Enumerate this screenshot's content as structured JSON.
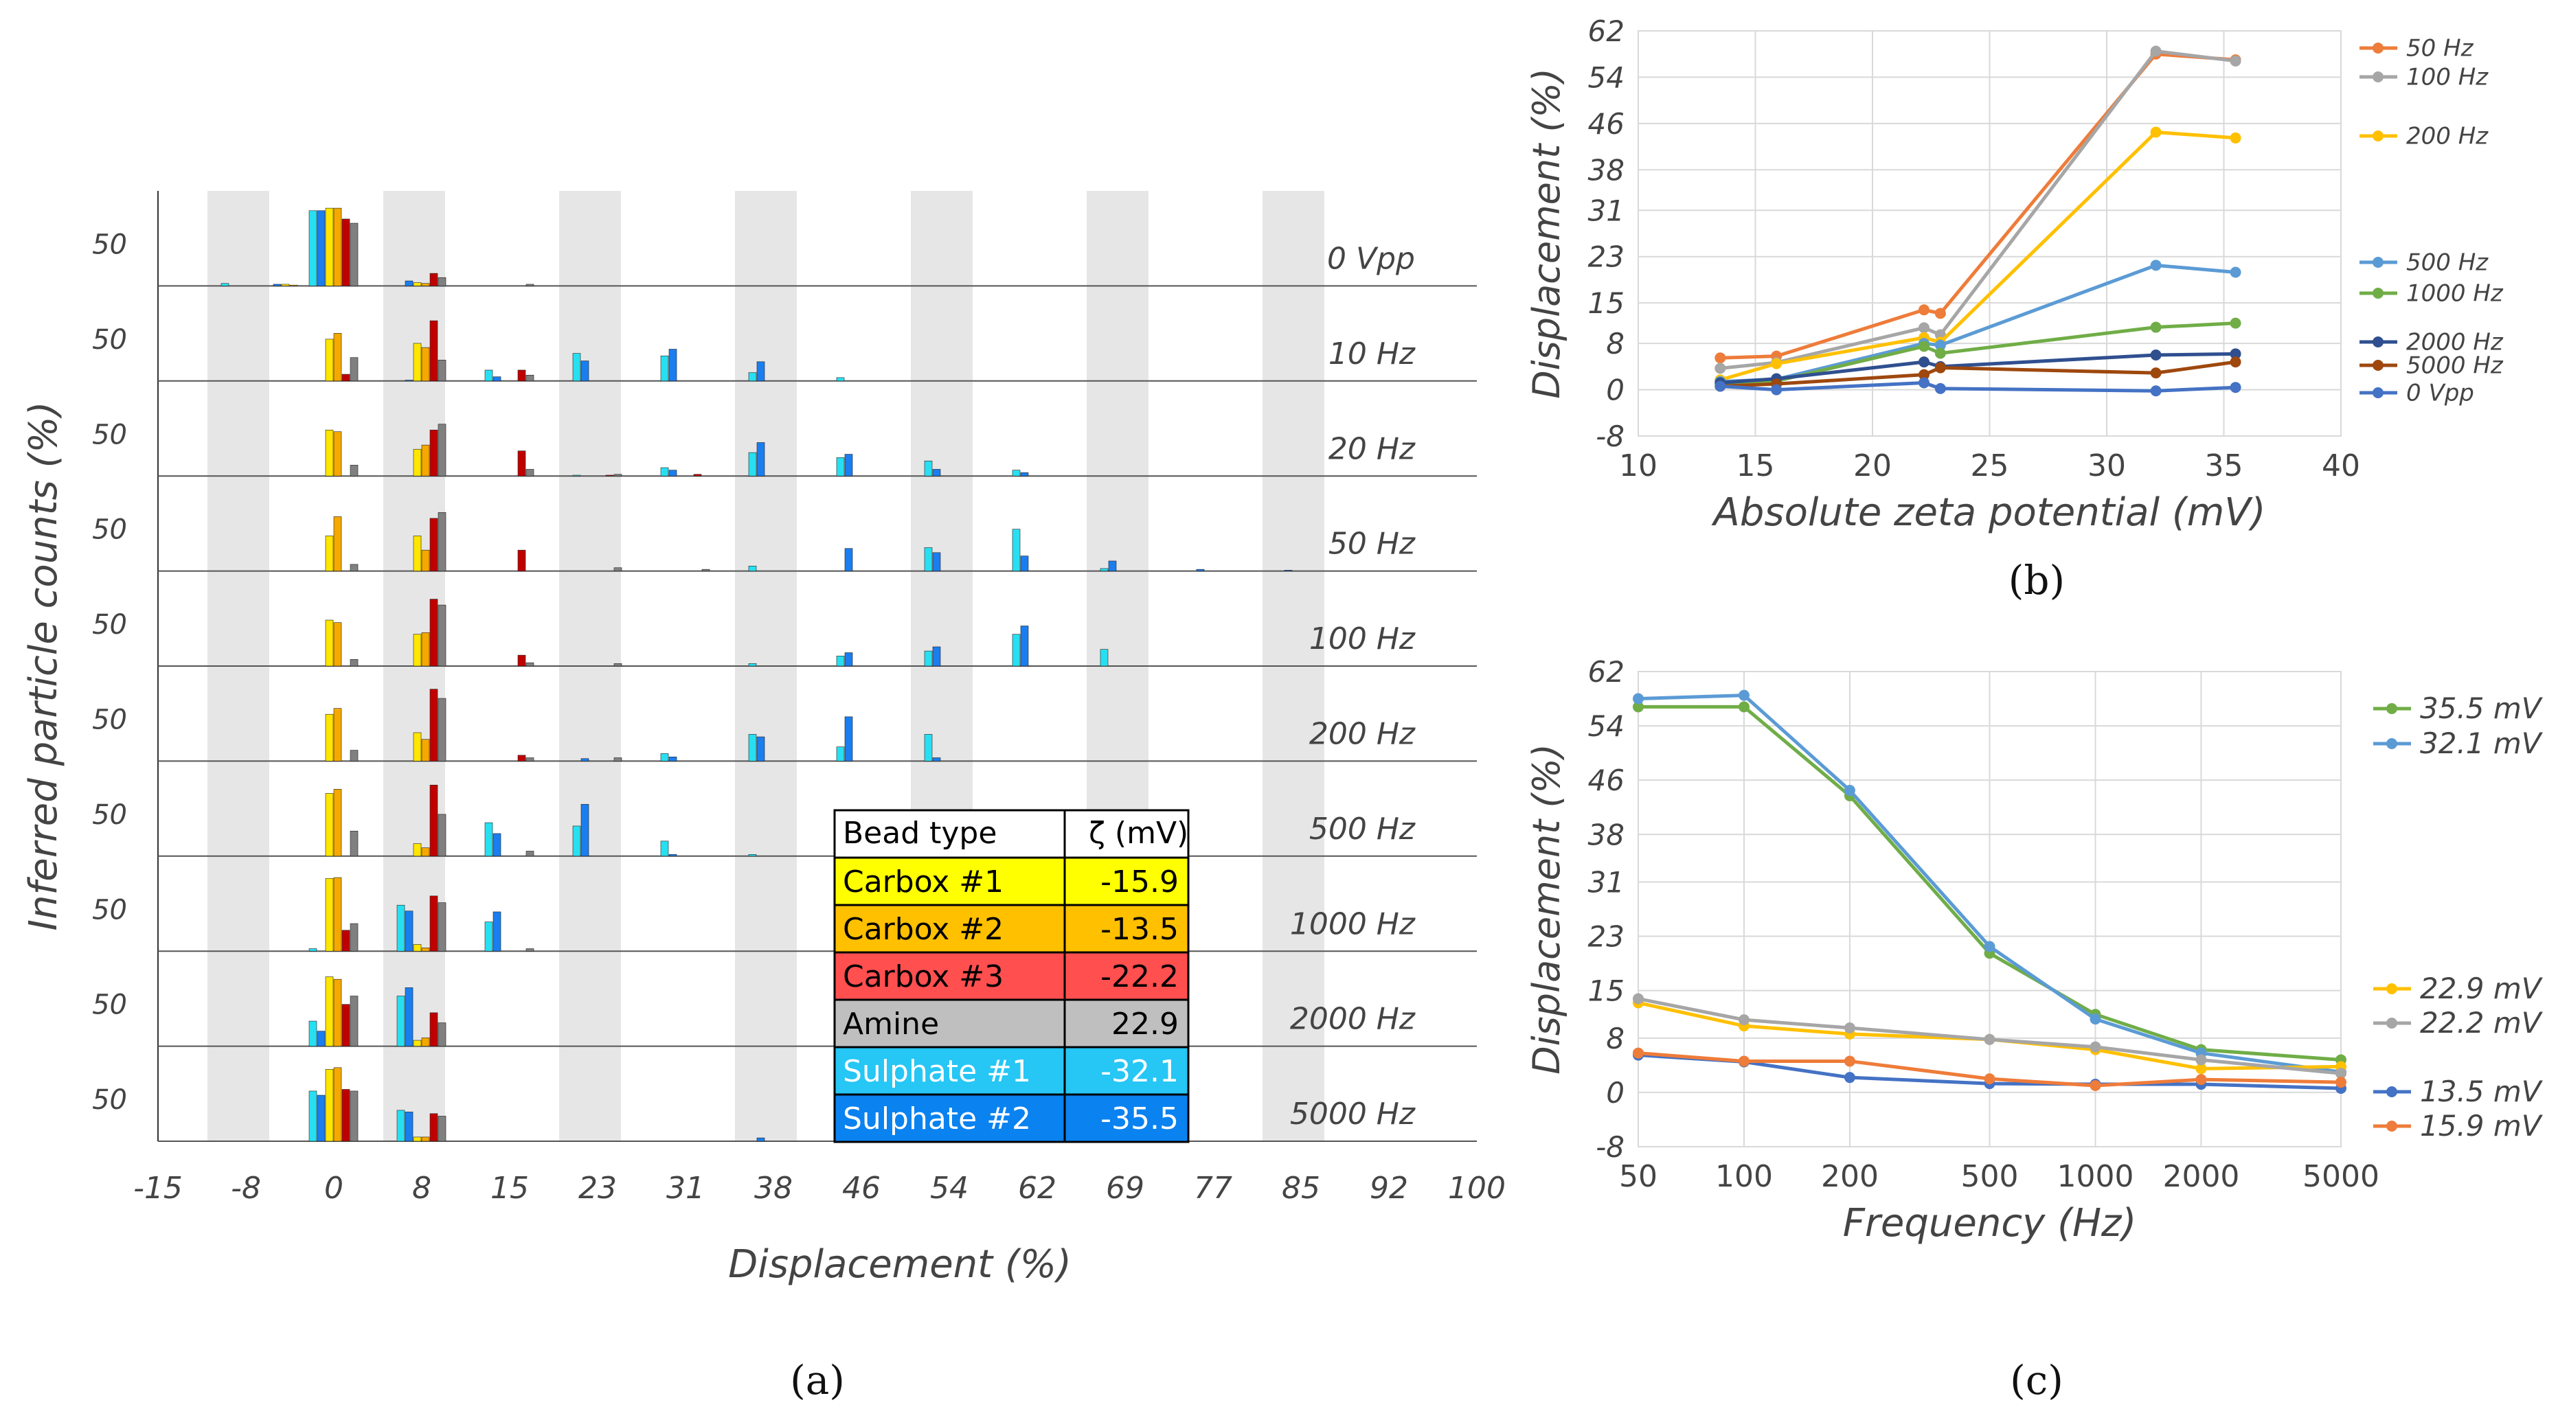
{
  "panel_labels": {
    "a": "(a)",
    "b": "(b)",
    "c": "(c)"
  },
  "chart_data": [
    {
      "id": "a",
      "type": "bar",
      "title": "",
      "xlabel": "Displacement (%)",
      "ylabel": "Inferred particle counts (%)",
      "x_ticks": [
        "-15",
        "-8",
        "0",
        "8",
        "15",
        "23",
        "31",
        "38",
        "46",
        "54",
        "62",
        "69",
        "77",
        "85",
        "92",
        "100"
      ],
      "y_tick_label": "50",
      "ylim": [
        0,
        100
      ],
      "bead_types": [
        "Carbox #1",
        "Carbox #2",
        "Carbox #3",
        "Amine",
        "Sulphate #1",
        "Sulphate #2"
      ],
      "bead_colors": [
        "#ffe600",
        "#f5a800",
        "#c00000",
        "#808080",
        "#26e0f2",
        "#1a7ef0"
      ],
      "bar_order": [
        "Sulphate #1",
        "Sulphate #2",
        "Carbox #1",
        "Carbox #2",
        "Carbox #3",
        "Amine"
      ],
      "legend_table": {
        "header": [
          "Bead type",
          "ζ (mV)"
        ],
        "rows": [
          [
            "Carbox #1",
            "-15.9"
          ],
          [
            "Carbox #2",
            "-13.5"
          ],
          [
            "Carbox #3",
            "-22.2"
          ],
          [
            "Amine",
            "22.9"
          ],
          [
            "Sulphate #1",
            "-32.1"
          ],
          [
            "Sulphate #2",
            "-35.5"
          ]
        ]
      },
      "conditions": [
        {
          "label": "0 Vpp",
          "bins": {
            "-8": [
              3,
              0,
              0,
              0,
              0,
              0
            ],
            "-4": [
              0,
              2,
              2,
              1,
              0,
              0
            ],
            "0": [
              90,
              90,
              93,
              93,
              80,
              75
            ],
            "4": [
              0,
              0,
              0,
              0,
              0,
              0
            ],
            "8": [
              0,
              6,
              4,
              3,
              15,
              10
            ],
            "15": [
              0,
              0,
              0,
              0,
              0,
              2
            ]
          }
        },
        {
          "label": "10 Hz",
          "bins": {
            "0": [
              0,
              0,
              50,
              57,
              8,
              28
            ],
            "8": [
              0,
              1,
              45,
              40,
              72,
              25
            ],
            "15": [
              13,
              5,
              0,
              0,
              13,
              7
            ],
            "23": [
              33,
              24,
              0,
              0,
              0,
              0
            ],
            "31": [
              30,
              38,
              0,
              0,
              0,
              0
            ],
            "38": [
              10,
              23,
              0,
              0,
              0,
              0
            ],
            "46": [
              4,
              0,
              0,
              0,
              0,
              0
            ]
          }
        },
        {
          "label": "20 Hz",
          "bins": {
            "0": [
              0,
              0,
              55,
              53,
              0,
              13
            ],
            "8": [
              0,
              0,
              32,
              37,
              55,
              62
            ],
            "15": [
              0,
              0,
              0,
              0,
              30,
              8
            ],
            "23": [
              1,
              0,
              0,
              0,
              1,
              2
            ],
            "31": [
              10,
              7,
              0,
              0,
              2,
              0
            ],
            "38": [
              28,
              40,
              0,
              0,
              0,
              0
            ],
            "46": [
              22,
              26,
              0,
              0,
              0,
              0
            ],
            "54": [
              18,
              8,
              0,
              0,
              0,
              0
            ],
            "62": [
              7,
              4,
              0,
              0,
              0,
              0
            ]
          }
        },
        {
          "label": "50 Hz",
          "bins": {
            "0": [
              0,
              0,
              42,
              65,
              0,
              8
            ],
            "8": [
              0,
              0,
              42,
              25,
              63,
              70
            ],
            "15": [
              0,
              0,
              0,
              0,
              25,
              0
            ],
            "23": [
              0,
              0,
              0,
              0,
              0,
              4
            ],
            "31": [
              0,
              0,
              0,
              0,
              0,
              2
            ],
            "38": [
              6,
              0,
              0,
              0,
              0,
              0
            ],
            "46": [
              0,
              27,
              0,
              0,
              0,
              0
            ],
            "54": [
              28,
              22,
              0,
              0,
              0,
              0
            ],
            "62": [
              50,
              18,
              0,
              0,
              0,
              0
            ],
            "69": [
              3,
              12,
              0,
              0,
              0,
              0
            ],
            "77": [
              0,
              2,
              0,
              0,
              0,
              0
            ],
            "85": [
              0,
              1,
              0,
              0,
              0,
              0
            ]
          }
        },
        {
          "label": "100 Hz",
          "bins": {
            "0": [
              0,
              0,
              55,
              52,
              0,
              8
            ],
            "8": [
              0,
              0,
              38,
              40,
              80,
              73
            ],
            "15": [
              0,
              0,
              0,
              0,
              13,
              4
            ],
            "23": [
              0,
              0,
              0,
              0,
              0,
              3
            ],
            "38": [
              3,
              0,
              0,
              0,
              0,
              0
            ],
            "46": [
              12,
              16,
              0,
              0,
              0,
              0
            ],
            "54": [
              18,
              23,
              0,
              0,
              0,
              0
            ],
            "62": [
              38,
              48,
              0,
              0,
              0,
              0
            ],
            "69": [
              20,
              0,
              0,
              0,
              0,
              0
            ]
          }
        },
        {
          "label": "200 Hz",
          "bins": {
            "0": [
              0,
              0,
              56,
              63,
              0,
              13
            ],
            "8": [
              0,
              0,
              34,
              26,
              86,
              75
            ],
            "15": [
              0,
              0,
              0,
              0,
              7,
              4
            ],
            "23": [
              0,
              3,
              0,
              0,
              0,
              4
            ],
            "31": [
              9,
              5,
              0,
              0,
              0,
              0
            ],
            "38": [
              32,
              29,
              0,
              0,
              0,
              0
            ],
            "46": [
              17,
              53,
              0,
              0,
              0,
              0
            ],
            "54": [
              32,
              4,
              0,
              0,
              0,
              0
            ]
          }
        },
        {
          "label": "500 Hz",
          "bins": {
            "0": [
              0,
              0,
              75,
              80,
              0,
              30
            ],
            "8": [
              0,
              0,
              15,
              10,
              85,
              50
            ],
            "15": [
              40,
              27,
              0,
              0,
              0,
              6
            ],
            "23": [
              36,
              62,
              0,
              0,
              0,
              0
            ],
            "31": [
              18,
              2,
              0,
              0,
              0,
              0
            ],
            "38": [
              2,
              0,
              0,
              0,
              0,
              0
            ]
          }
        },
        {
          "label": "1000 Hz",
          "bins": {
            "0": [
              3,
              0,
              87,
              88,
              25,
              33
            ],
            "8": [
              55,
              48,
              8,
              4,
              66,
              58
            ],
            "15": [
              35,
              47,
              0,
              0,
              0,
              3
            ]
          }
        },
        {
          "label": "2000 Hz",
          "bins": {
            "0": [
              30,
              18,
              83,
              80,
              50,
              60
            ],
            "8": [
              60,
              70,
              7,
              10,
              40,
              28
            ],
            "15": [
              0,
              0,
              0,
              0,
              0,
              0
            ]
          }
        },
        {
          "label": "5000 Hz",
          "bins": {
            "0": [
              60,
              55,
              86,
              88,
              62,
              60
            ],
            "8": [
              37,
              35,
              5,
              5,
              33,
              30
            ],
            "38": [
              0,
              4,
              0,
              0,
              0,
              0
            ]
          }
        }
      ]
    },
    {
      "id": "b",
      "type": "line",
      "title": "",
      "xlabel": "Absolute zeta potential (mV)",
      "ylabel": "Displacement (%)",
      "xlim": [
        10,
        40
      ],
      "ylim": [
        -8,
        62
      ],
      "x_ticks": [
        "10",
        "15",
        "20",
        "25",
        "30",
        "35",
        "40"
      ],
      "y_ticks": [
        "-8",
        "0",
        "8",
        "15",
        "23",
        "31",
        "38",
        "46",
        "54",
        "62"
      ],
      "x": [
        13.5,
        15.9,
        22.2,
        22.9,
        32.1,
        35.5
      ],
      "series": [
        {
          "name": "50 Hz",
          "color": "#ee7c3a",
          "values": [
            5.5,
            5.8,
            13.8,
            13.2,
            58.0,
            57.0
          ]
        },
        {
          "name": "100 Hz",
          "color": "#a6a6a6",
          "values": [
            3.7,
            4.7,
            10.7,
            9.5,
            58.5,
            56.8
          ]
        },
        {
          "name": "200 Hz",
          "color": "#ffc000",
          "values": [
            1.7,
            4.5,
            9.0,
            8.2,
            44.5,
            43.5
          ]
        },
        {
          "name": "500 Hz",
          "color": "#5b9bd5",
          "values": [
            1.4,
            1.8,
            8.0,
            7.7,
            21.5,
            20.3
          ]
        },
        {
          "name": "1000 Hz",
          "color": "#70ad47",
          "values": [
            1.0,
            1.5,
            7.5,
            6.3,
            10.8,
            11.5
          ]
        },
        {
          "name": "2000 Hz",
          "color": "#2f4f8f",
          "values": [
            1.2,
            1.9,
            4.8,
            4.0,
            6.0,
            6.2
          ]
        },
        {
          "name": "5000 Hz",
          "color": "#9e480e",
          "values": [
            0.6,
            1.0,
            2.6,
            3.8,
            2.9,
            4.8
          ]
        },
        {
          "name": "0 Vpp",
          "color": "#4472c4",
          "values": [
            0.6,
            0.0,
            1.2,
            0.2,
            -0.2,
            0.4
          ]
        }
      ]
    },
    {
      "id": "c",
      "type": "line",
      "title": "",
      "xlabel": "Frequency (Hz)",
      "ylabel": "Displacement (%)",
      "x_scale": "log",
      "xlim": [
        50,
        5000
      ],
      "ylim": [
        -8,
        62
      ],
      "x_ticks": [
        "50",
        "100",
        "200",
        "500",
        "1000",
        "2000",
        "5000"
      ],
      "y_ticks": [
        "-8",
        "0",
        "8",
        "15",
        "23",
        "31",
        "38",
        "46",
        "54",
        "62"
      ],
      "x": [
        50,
        100,
        200,
        500,
        1000,
        2000,
        5000
      ],
      "series": [
        {
          "name": "35.5 mV",
          "color": "#70ad47",
          "values": [
            56.8,
            56.8,
            43.7,
            20.5,
            11.5,
            6.3,
            4.8
          ]
        },
        {
          "name": "32.1 mV",
          "color": "#5b9bd5",
          "values": [
            58.0,
            58.5,
            44.5,
            21.5,
            10.8,
            5.8,
            3.0
          ]
        },
        {
          "name": "22.9 mV",
          "color": "#ffc000",
          "values": [
            13.2,
            9.8,
            8.6,
            7.8,
            6.3,
            3.5,
            3.8
          ]
        },
        {
          "name": "22.2 mV",
          "color": "#a6a6a6",
          "values": [
            13.8,
            10.7,
            9.5,
            7.8,
            6.7,
            4.8,
            2.8
          ]
        },
        {
          "name": "13.5 mV",
          "color": "#4472c4",
          "values": [
            5.5,
            4.5,
            2.2,
            1.3,
            1.2,
            1.2,
            0.6
          ]
        },
        {
          "name": "15.9 mV",
          "color": "#ee7c3a",
          "values": [
            5.8,
            4.6,
            4.6,
            2.0,
            1.0,
            1.9,
            1.5
          ]
        }
      ]
    }
  ]
}
